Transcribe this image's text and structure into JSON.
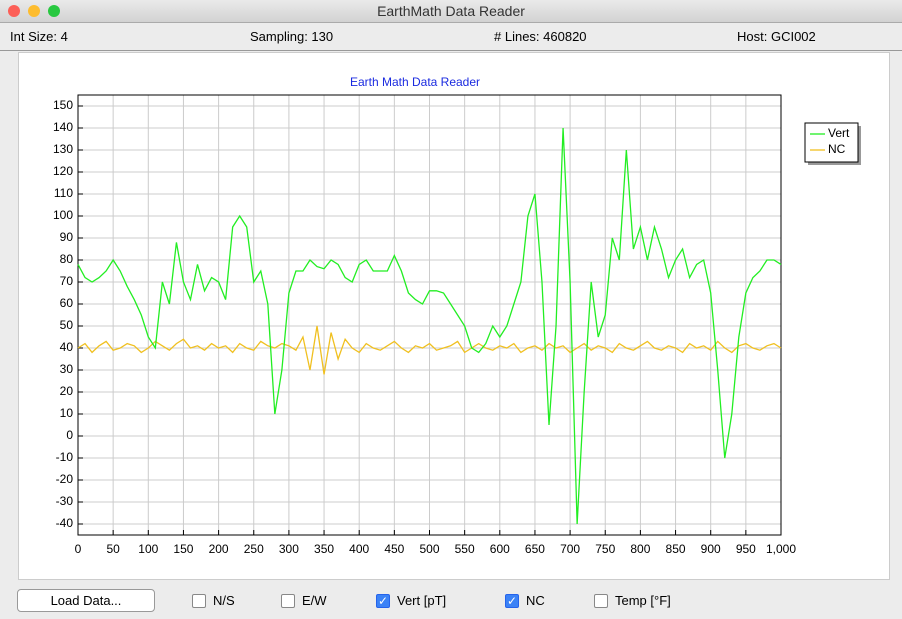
{
  "window": {
    "title": "EarthMath Data Reader"
  },
  "status": {
    "int_size": "Int Size: 4",
    "sampling": "Sampling: 130",
    "lines": "# Lines: 460820",
    "host": "Host: GCI002"
  },
  "chart_data": {
    "type": "line",
    "title": "Earth Math Data Reader",
    "x": [
      0,
      10,
      20,
      30,
      40,
      50,
      60,
      70,
      80,
      90,
      100,
      110,
      120,
      130,
      140,
      150,
      160,
      170,
      180,
      190,
      200,
      210,
      220,
      230,
      240,
      250,
      260,
      270,
      280,
      290,
      300,
      310,
      320,
      330,
      340,
      350,
      360,
      370,
      380,
      390,
      400,
      410,
      420,
      430,
      440,
      450,
      460,
      470,
      480,
      490,
      500,
      510,
      520,
      530,
      540,
      550,
      560,
      570,
      580,
      590,
      600,
      610,
      620,
      630,
      640,
      650,
      660,
      670,
      680,
      690,
      700,
      710,
      720,
      730,
      740,
      750,
      760,
      770,
      780,
      790,
      800,
      810,
      820,
      830,
      840,
      850,
      860,
      870,
      880,
      890,
      900,
      910,
      920,
      930,
      940,
      950,
      960,
      970,
      980,
      990,
      1000
    ],
    "series": [
      {
        "name": "Vert",
        "color": "#22ee22",
        "values": [
          78,
          72,
          70,
          72,
          75,
          80,
          75,
          68,
          62,
          55,
          45,
          40,
          70,
          60,
          88,
          70,
          62,
          78,
          66,
          72,
          70,
          62,
          95,
          100,
          95,
          70,
          75,
          60,
          10,
          30,
          65,
          75,
          75,
          80,
          77,
          76,
          80,
          78,
          72,
          70,
          78,
          80,
          75,
          75,
          75,
          82,
          75,
          65,
          62,
          60,
          66,
          66,
          65,
          60,
          55,
          50,
          40,
          38,
          42,
          50,
          45,
          50,
          60,
          70,
          100,
          110,
          70,
          5,
          50,
          140,
          70,
          -40,
          20,
          70,
          45,
          55,
          90,
          80,
          130,
          85,
          95,
          80,
          95,
          85,
          72,
          80,
          85,
          72,
          78,
          80,
          65,
          30,
          -10,
          10,
          45,
          65,
          72,
          75,
          80,
          80,
          78
        ]
      },
      {
        "name": "NC",
        "color": "#f0c020",
        "values": [
          40,
          42,
          38,
          41,
          43,
          39,
          40,
          42,
          41,
          38,
          40,
          43,
          41,
          39,
          42,
          44,
          40,
          41,
          39,
          42,
          40,
          41,
          38,
          42,
          40,
          39,
          43,
          41,
          40,
          42,
          41,
          39,
          45,
          30,
          50,
          28,
          47,
          35,
          44,
          40,
          38,
          42,
          40,
          39,
          41,
          43,
          40,
          38,
          41,
          40,
          42,
          39,
          40,
          41,
          43,
          38,
          40,
          42,
          40,
          39,
          41,
          40,
          42,
          38,
          40,
          41,
          39,
          42,
          40,
          41,
          38,
          40,
          42,
          39,
          41,
          40,
          38,
          42,
          40,
          39,
          41,
          43,
          40,
          39,
          41,
          40,
          38,
          42,
          40,
          41,
          39,
          43,
          40,
          38,
          41,
          42,
          40,
          39,
          41,
          42,
          40
        ]
      }
    ],
    "xlim": [
      0,
      1000
    ],
    "xticks": [
      0,
      50,
      100,
      150,
      200,
      250,
      300,
      350,
      400,
      450,
      500,
      550,
      600,
      650,
      700,
      750,
      800,
      850,
      900,
      950,
      {
        "value": 1000,
        "label": "1,000"
      }
    ],
    "ylim": [
      -45,
      155
    ],
    "yticks": [
      -40,
      -30,
      -20,
      -10,
      0,
      10,
      20,
      30,
      40,
      50,
      60,
      70,
      80,
      90,
      100,
      110,
      120,
      130,
      140,
      150
    ],
    "grid": true,
    "legend": "right"
  },
  "controls": {
    "load_button": "Load Data...",
    "checkboxes": [
      {
        "label": "N/S",
        "checked": false
      },
      {
        "label": "E/W",
        "checked": false
      },
      {
        "label": "Vert [pT]",
        "checked": true
      },
      {
        "label": "NC",
        "checked": true
      },
      {
        "label": "Temp [°F]",
        "checked": false
      }
    ]
  }
}
